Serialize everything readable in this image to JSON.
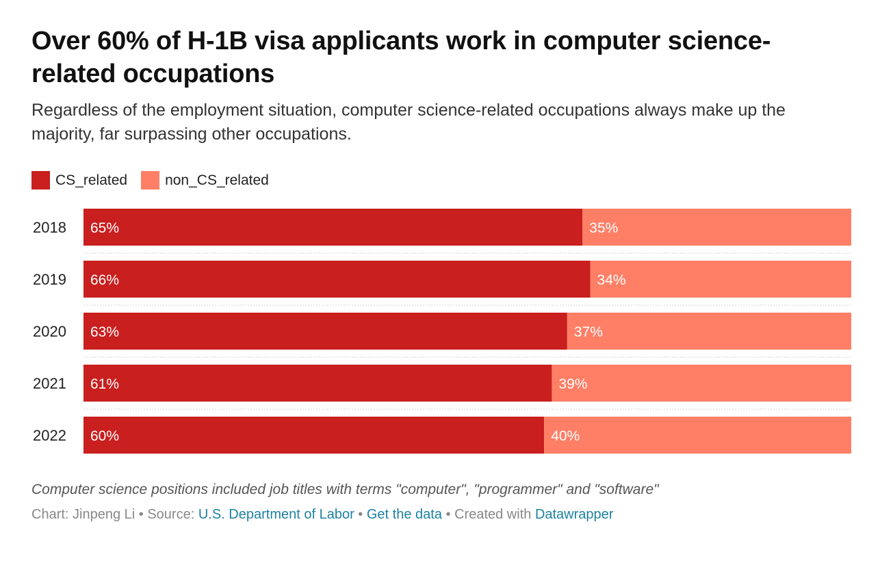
{
  "header": {
    "title": "Over 60% of H-1B visa applicants work in computer science-related occupations",
    "subtitle": "Regardless of the employment situation, computer science-related occupations always make up the majority, far surpassing other occupations."
  },
  "chart_data": {
    "type": "bar",
    "orientation": "horizontal",
    "stacked": true,
    "categories": [
      "2018",
      "2019",
      "2020",
      "2021",
      "2022"
    ],
    "series": [
      {
        "name": "CS_related",
        "color": "#c91f1f",
        "values": [
          65,
          66,
          63,
          61,
          60
        ]
      },
      {
        "name": "non_CS_related",
        "color": "#ff7f66",
        "values": [
          35,
          34,
          37,
          39,
          40
        ]
      }
    ],
    "value_suffix": "%",
    "xlim": [
      0,
      100
    ],
    "legend_position": "top-left",
    "grid": false
  },
  "footer": {
    "notes": "Computer science positions included job titles with terms \"computer\", \"programmer\" and \"software\"",
    "chart_label": "Chart: Jinpeng Li",
    "source_label": "Source:",
    "source_link": "U.S. Department of Labor",
    "get_data_link": "Get the data",
    "created_label": "Created with",
    "created_link": "Datawrapper",
    "separator": "•"
  }
}
